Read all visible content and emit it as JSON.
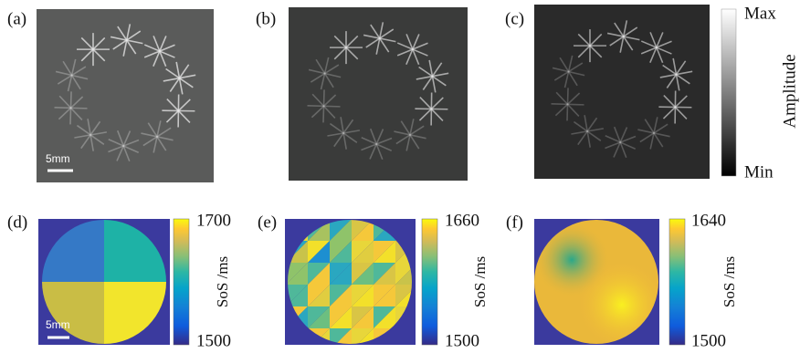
{
  "panel_labels": [
    "(a)",
    "(b)",
    "(c)",
    "(d)",
    "(e)",
    "(f)"
  ],
  "scale_bar": "5mm",
  "amplitude_colorbar": {
    "max": "Max",
    "min": "Min",
    "label": "Amplitude"
  },
  "sos_colorbars": [
    {
      "max": 1700,
      "min": 1500,
      "label": "SoS /ms"
    },
    {
      "max": 1660,
      "min": 1500,
      "label": "SoS /ms"
    },
    {
      "max": 1640,
      "min": 1500,
      "label": "SoS /ms"
    }
  ]
}
